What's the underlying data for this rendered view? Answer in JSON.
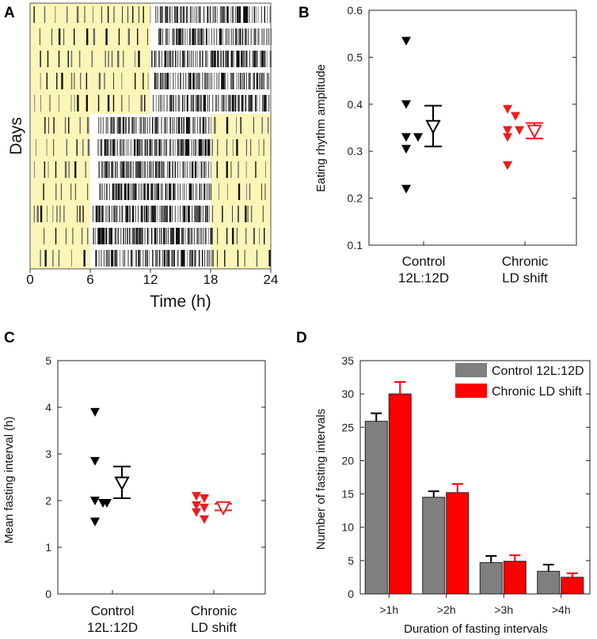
{
  "colors": {
    "control": "#000000",
    "chronic": "#ee1c1c",
    "control_bar": "#7f7f7f",
    "chronic_bar": "#ff0000",
    "light_phase": "#fbf5b7"
  },
  "chart_data": [
    {
      "panel": "A",
      "type": "actogram",
      "xlabel": "Time (h)",
      "ylabel": "Days",
      "xticks": [
        "0",
        "6",
        "12",
        "18",
        "24"
      ],
      "xlim": [
        0,
        24
      ],
      "days": 12,
      "light_phase_hours": [
        [
          0,
          12,
          0,
          5
        ],
        [
          0,
          6,
          5,
          12
        ],
        [
          18,
          24,
          5,
          12
        ]
      ]
    },
    {
      "panel": "B",
      "type": "scatter",
      "ylabel": "Eating rhythm amplitude",
      "ylim": [
        0.1,
        0.6
      ],
      "yticks": [
        "0.1",
        "0.2",
        "0.3",
        "0.4",
        "0.5",
        "0.6"
      ],
      "categories": [
        "Control\n12L:12D",
        "Chronic\nLD shift"
      ],
      "series": [
        {
          "name": "Control 12L:12D",
          "values": [
            0.535,
            0.4,
            0.33,
            0.33,
            0.305,
            0.22
          ],
          "mean": 0.353,
          "sem_low": 0.31,
          "sem_high": 0.397
        },
        {
          "name": "Chronic LD shift",
          "values": [
            0.39,
            0.375,
            0.345,
            0.345,
            0.33,
            0.27
          ],
          "mean": 0.343,
          "sem_low": 0.327,
          "sem_high": 0.36
        }
      ]
    },
    {
      "panel": "C",
      "type": "scatter",
      "ylabel": "Mean fasting interval (h)",
      "ylim": [
        0,
        5
      ],
      "yticks": [
        "0",
        "1",
        "2",
        "3",
        "4",
        "5"
      ],
      "categories": [
        "Control\n12L:12D",
        "Chronic\nLD shift"
      ],
      "series": [
        {
          "name": "Control 12L:12D",
          "values": [
            3.9,
            2.85,
            2.0,
            1.95,
            1.95,
            1.55
          ],
          "mean": 2.38,
          "sem_low": 2.05,
          "sem_high": 2.73
        },
        {
          "name": "Chronic LD shift",
          "values": [
            2.1,
            2.05,
            1.9,
            1.85,
            1.75,
            1.6
          ],
          "mean": 1.85,
          "sem_low": 1.79,
          "sem_high": 1.93
        }
      ]
    },
    {
      "panel": "D",
      "type": "bar",
      "xlabel": "Duration of fasting intervals",
      "ylabel": "Number of fasting intervals",
      "ylim": [
        0,
        35
      ],
      "yticks": [
        "0",
        "5",
        "10",
        "15",
        "20",
        "25",
        "30",
        "35"
      ],
      "categories": [
        ">1h",
        ">2h",
        ">3h",
        ">4h"
      ],
      "legend_position": "top-right",
      "series": [
        {
          "name": "Control 12L:12D",
          "values": [
            25.9,
            14.5,
            4.7,
            3.4
          ],
          "errors": [
            1.2,
            0.9,
            1.0,
            1.0
          ]
        },
        {
          "name": "Chronic LD shift",
          "values": [
            30.0,
            15.2,
            4.9,
            2.5
          ],
          "errors": [
            1.8,
            1.3,
            0.9,
            0.6
          ]
        }
      ]
    }
  ]
}
